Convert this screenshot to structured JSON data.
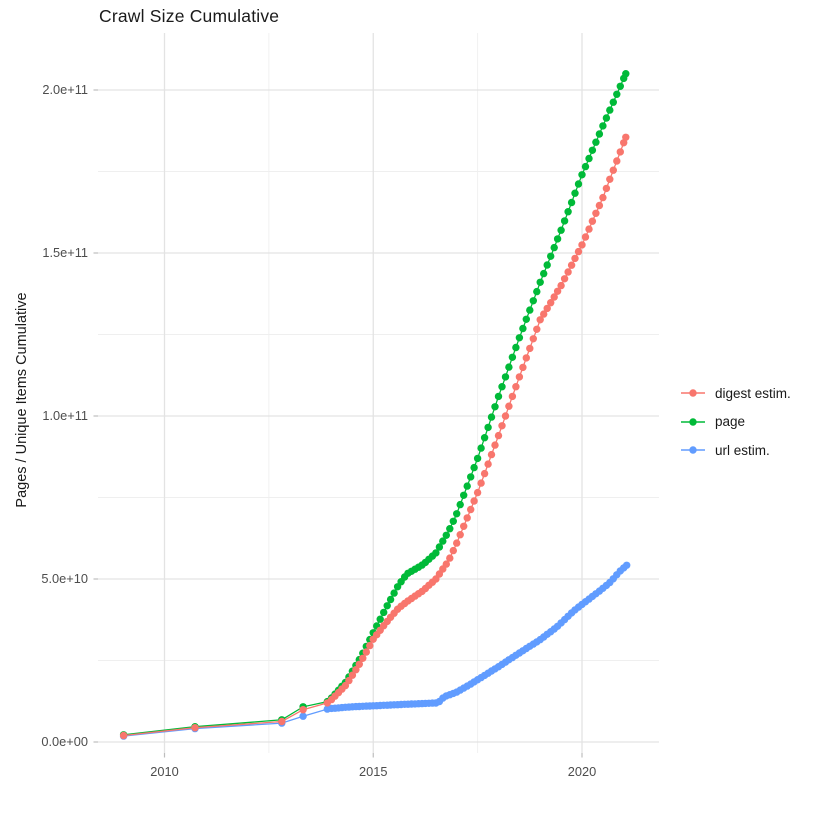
{
  "title": "Crawl Size Cumulative",
  "chart_data": {
    "type": "line",
    "title": "Crawl Size Cumulative",
    "xlabel": "",
    "ylabel": "Pages / Unique Items Cumulative",
    "values_unit": "1e9 pages (value 205 = 2.05e+11)",
    "grid": true,
    "x_ticks": [
      {
        "value": 2010,
        "label": "2010"
      },
      {
        "value": 2015,
        "label": "2015"
      },
      {
        "value": 2020,
        "label": "2020"
      }
    ],
    "x_minor_gridlines": [
      2012.5,
      2017.5
    ],
    "y_ticks_e9": [
      {
        "value": 0,
        "label": "0.0e+00"
      },
      {
        "value": 50,
        "label": "5.0e+10"
      },
      {
        "value": 100,
        "label": "1.0e+11"
      },
      {
        "value": 150,
        "label": "1.5e+11"
      },
      {
        "value": 200,
        "label": "2.0e+11"
      }
    ],
    "y_minor_gridlines_e9": [
      25,
      75,
      125,
      175
    ],
    "x_range": [
      2008.4,
      2021.85
    ],
    "y_range_e9": [
      -3.5,
      217.5
    ],
    "legend": {
      "position": "right",
      "entries": [
        {
          "label": "digest estim.",
          "color": "#F8766D"
        },
        {
          "label": "page",
          "color": "#00BA38"
        },
        {
          "label": "url estim.",
          "color": "#619CFF"
        }
      ]
    },
    "point_interval_years_dense": 0.083333,
    "draw_order": [
      1,
      2,
      0
    ],
    "series": [
      {
        "name": "digest estim.",
        "color": "#F8766D",
        "points_sparse": [
          [
            2009.02,
            2.0
          ],
          [
            2010.73,
            4.4
          ],
          [
            2012.81,
            6.3
          ],
          [
            2013.32,
            9.9
          ],
          [
            2013.9,
            12.0
          ]
        ],
        "anchors_dense": [
          [
            2014.0,
            13.0
          ],
          [
            2014.35,
            17.5
          ],
          [
            2014.7,
            24.5
          ],
          [
            2015.0,
            31.5
          ],
          [
            2015.3,
            36.5
          ],
          [
            2015.6,
            41.0
          ],
          [
            2015.8,
            43.0
          ],
          [
            2016.2,
            46.5
          ],
          [
            2016.5,
            50.0
          ],
          [
            2016.8,
            55.5
          ],
          [
            2017.0,
            61.0
          ],
          [
            2017.5,
            76.5
          ],
          [
            2018.0,
            94.0
          ],
          [
            2018.5,
            112.0
          ],
          [
            2019.0,
            129.5
          ],
          [
            2019.5,
            140.0
          ],
          [
            2020.0,
            152.5
          ],
          [
            2020.5,
            167.0
          ],
          [
            2021.05,
            185.5
          ]
        ]
      },
      {
        "name": "page",
        "color": "#00BA38",
        "points_sparse": [
          [
            2009.02,
            2.2
          ],
          [
            2010.73,
            4.7
          ],
          [
            2012.81,
            6.8
          ],
          [
            2013.32,
            10.8
          ],
          [
            2013.9,
            12.4
          ]
        ],
        "anchors_dense": [
          [
            2014.0,
            13.5
          ],
          [
            2014.35,
            18.5
          ],
          [
            2014.7,
            26.0
          ],
          [
            2015.0,
            33.5
          ],
          [
            2015.3,
            41.0
          ],
          [
            2015.6,
            48.0
          ],
          [
            2015.8,
            51.5
          ],
          [
            2016.2,
            54.5
          ],
          [
            2016.5,
            58.0
          ],
          [
            2016.8,
            64.5
          ],
          [
            2017.0,
            70.0
          ],
          [
            2017.5,
            87.0
          ],
          [
            2018.0,
            106.0
          ],
          [
            2018.5,
            124.0
          ],
          [
            2019.0,
            141.0
          ],
          [
            2019.5,
            157.0
          ],
          [
            2020.0,
            174.0
          ],
          [
            2020.5,
            189.0
          ],
          [
            2021.05,
            205.0
          ]
        ]
      },
      {
        "name": "url estim.",
        "color": "#619CFF",
        "points_sparse": [
          [
            2009.02,
            1.8
          ],
          [
            2010.73,
            4.1
          ],
          [
            2012.81,
            5.8
          ],
          [
            2013.32,
            7.9
          ],
          [
            2013.9,
            10.1
          ]
        ],
        "anchors_dense": [
          [
            2014.0,
            10.3
          ],
          [
            2014.5,
            10.8
          ],
          [
            2015.0,
            11.1
          ],
          [
            2015.5,
            11.4
          ],
          [
            2016.0,
            11.7
          ],
          [
            2016.55,
            12.0
          ],
          [
            2016.7,
            13.9
          ],
          [
            2017.0,
            15.3
          ],
          [
            2017.3,
            17.5
          ],
          [
            2017.7,
            20.7
          ],
          [
            2018.0,
            23.1
          ],
          [
            2018.5,
            27.3
          ],
          [
            2019.0,
            31.4
          ],
          [
            2019.4,
            35.3
          ],
          [
            2019.8,
            40.2
          ],
          [
            2020.1,
            43.2
          ],
          [
            2020.45,
            46.6
          ],
          [
            2020.7,
            49.3
          ],
          [
            2020.9,
            52.3
          ],
          [
            2021.07,
            54.2
          ]
        ]
      }
    ]
  }
}
